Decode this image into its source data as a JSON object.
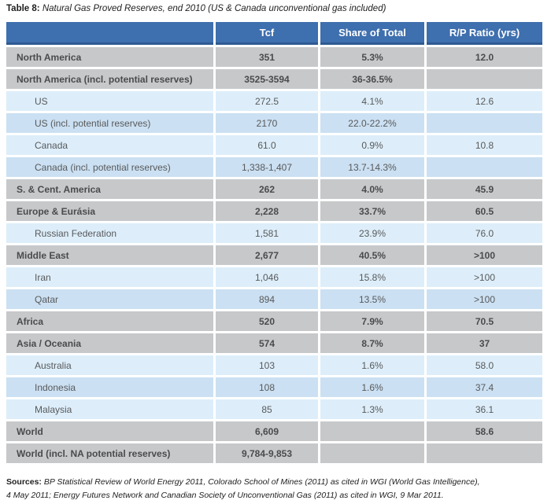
{
  "title": {
    "label": "Table 8:",
    "caption": "Natural Gas Proved Reserves, end 2010 (US & Canada unconventional gas included)"
  },
  "table": {
    "columns": [
      "",
      "Tcf",
      "Share of Total",
      "R/P Ratio (yrs)"
    ],
    "rows": [
      {
        "label": "North America",
        "tcf": "351",
        "share": "5.3%",
        "rp": "12.0",
        "style": "region"
      },
      {
        "label": "North America (incl. potential reserves)",
        "tcf": "3525-3594",
        "share": "36-36.5%",
        "rp": "",
        "style": "region"
      },
      {
        "label": "US",
        "tcf": "272.5",
        "share": "4.1%",
        "rp": "12.6",
        "style": "sub-light"
      },
      {
        "label": "US (incl. potential reserves)",
        "tcf": "2170",
        "share": "22.0-22.2%",
        "rp": "",
        "style": "sub-medium"
      },
      {
        "label": "Canada",
        "tcf": "61.0",
        "share": "0.9%",
        "rp": "10.8",
        "style": "sub-light"
      },
      {
        "label": "Canada (incl. potential reserves)",
        "tcf": "1,338-1,407",
        "share": "13.7-14.3%",
        "rp": "",
        "style": "sub-medium"
      },
      {
        "label": "S. & Cent. America",
        "tcf": "262",
        "share": "4.0%",
        "rp": "45.9",
        "style": "region"
      },
      {
        "label": "Europe & Eurásia",
        "tcf": "2,228",
        "share": "33.7%",
        "rp": "60.5",
        "style": "region"
      },
      {
        "label": "Russian Federation",
        "tcf": "1,581",
        "share": "23.9%",
        "rp": "76.0",
        "style": "sub-light"
      },
      {
        "label": "Middle East",
        "tcf": "2,677",
        "share": "40.5%",
        "rp": ">100",
        "style": "region"
      },
      {
        "label": "Iran",
        "tcf": "1,046",
        "share": "15.8%",
        "rp": ">100",
        "style": "sub-light"
      },
      {
        "label": "Qatar",
        "tcf": "894",
        "share": "13.5%",
        "rp": ">100",
        "style": "sub-medium"
      },
      {
        "label": "Africa",
        "tcf": "520",
        "share": "7.9%",
        "rp": "70.5",
        "style": "region"
      },
      {
        "label": "Asia / Oceania",
        "tcf": "574",
        "share": "8.7%",
        "rp": "37",
        "style": "region"
      },
      {
        "label": "Australia",
        "tcf": "103",
        "share": "1.6%",
        "rp": "58.0",
        "style": "sub-light"
      },
      {
        "label": "Indonesia",
        "tcf": "108",
        "share": "1.6%",
        "rp": "37.4",
        "style": "sub-medium"
      },
      {
        "label": "Malaysia",
        "tcf": "85",
        "share": "1.3%",
        "rp": "36.1",
        "style": "sub-light"
      },
      {
        "label": "World",
        "tcf": "6,609",
        "share": "",
        "rp": "58.6",
        "style": "region"
      },
      {
        "label": "World (incl. NA potential reserves)",
        "tcf": "9,784-9,853",
        "share": "",
        "rp": "",
        "style": "region"
      }
    ]
  },
  "sources": {
    "label": "Sources:",
    "line1": "BP Statistical Review of World Energy 2011, Colorado School of Mines (2011) as cited in WGI (World Gas Intelligence),",
    "line2": "4 May 2011; Energy Futures Network and Canadian Society of Unconventional Gas (2011) as cited in WGI, 9 Mar 2011."
  },
  "colors": {
    "header_blue": "#3e6fae",
    "header_border_blue": "#2e5a92",
    "region_row_gray": "#c7c8ca",
    "sub_row_light_blue": "#ddeefa",
    "sub_row_medium_blue": "#cbe0f2",
    "header_text": "#ffffff",
    "region_text": "#4a4b4d",
    "sub_text": "#58595b"
  }
}
